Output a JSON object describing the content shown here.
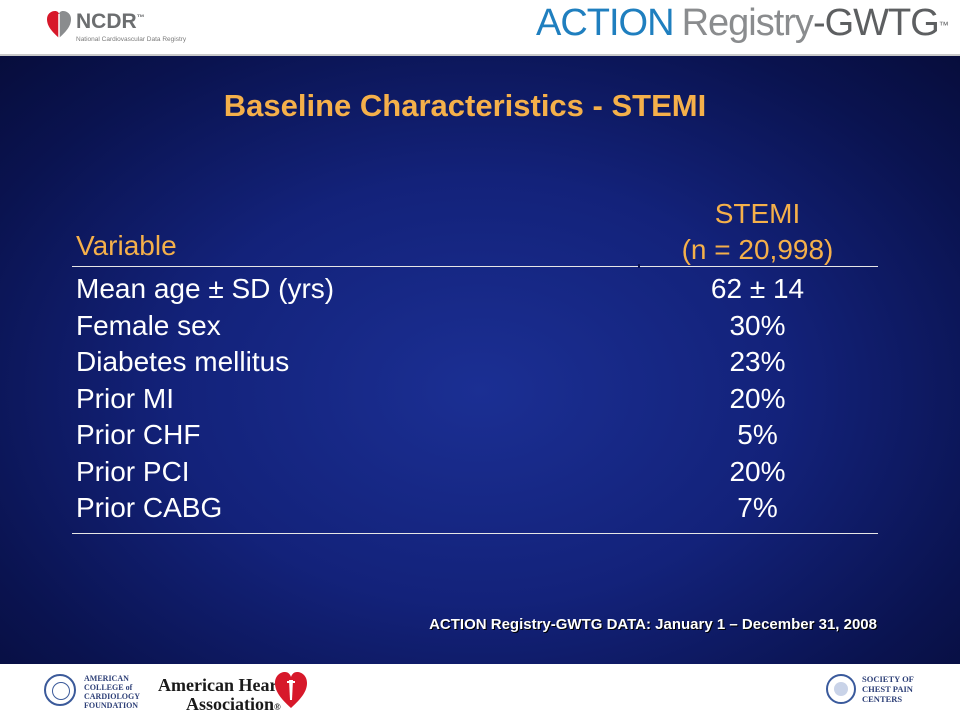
{
  "header": {
    "ncdr_logo": {
      "word": "NCDR",
      "tm": "™",
      "subtitle": "National Cardiovascular Data Registry"
    },
    "action_logo": {
      "action": "ACTION",
      "registry": "Registry",
      "gwtg": "-GWTG",
      "tm": "™"
    }
  },
  "slide": {
    "title": "Baseline Characteristics - STEMI",
    "table": {
      "col_variable": "Variable",
      "col_group_line1": "STEMI",
      "col_group_line2": "(n = 20,998)",
      "rows": [
        {
          "label": "Mean age ± SD (yrs)",
          "value": "62 ± 14"
        },
        {
          "label": "Female sex",
          "value": "30%"
        },
        {
          "label": "Diabetes mellitus",
          "value": "23%"
        },
        {
          "label": "Prior MI",
          "value": "20%"
        },
        {
          "label": "Prior CHF",
          "value": "5%"
        },
        {
          "label": "Prior PCI",
          "value": "20%"
        },
        {
          "label": "Prior CABG",
          "value": "7%"
        }
      ]
    },
    "source_note": "ACTION Registry-GWTG DATA: January 1 – December 31, 2008"
  },
  "footer": {
    "acc_logo": {
      "line1": "AMERICAN",
      "line2": "COLLEGE of",
      "line3": "CARDIOLOGY",
      "line4": "FOUNDATION"
    },
    "aha_logo": {
      "line1": "American Heart",
      "line2": "Association",
      "reg": "®"
    },
    "scpc_logo": {
      "line1": "SOCIETY OF",
      "line2": "CHEST PAIN",
      "line3": "CENTERS"
    }
  },
  "colors": {
    "title_orange": "#f5b04a",
    "slide_blue": "#13227a",
    "action_blue": "#1f7fbf",
    "aha_red": "#d7182a"
  }
}
